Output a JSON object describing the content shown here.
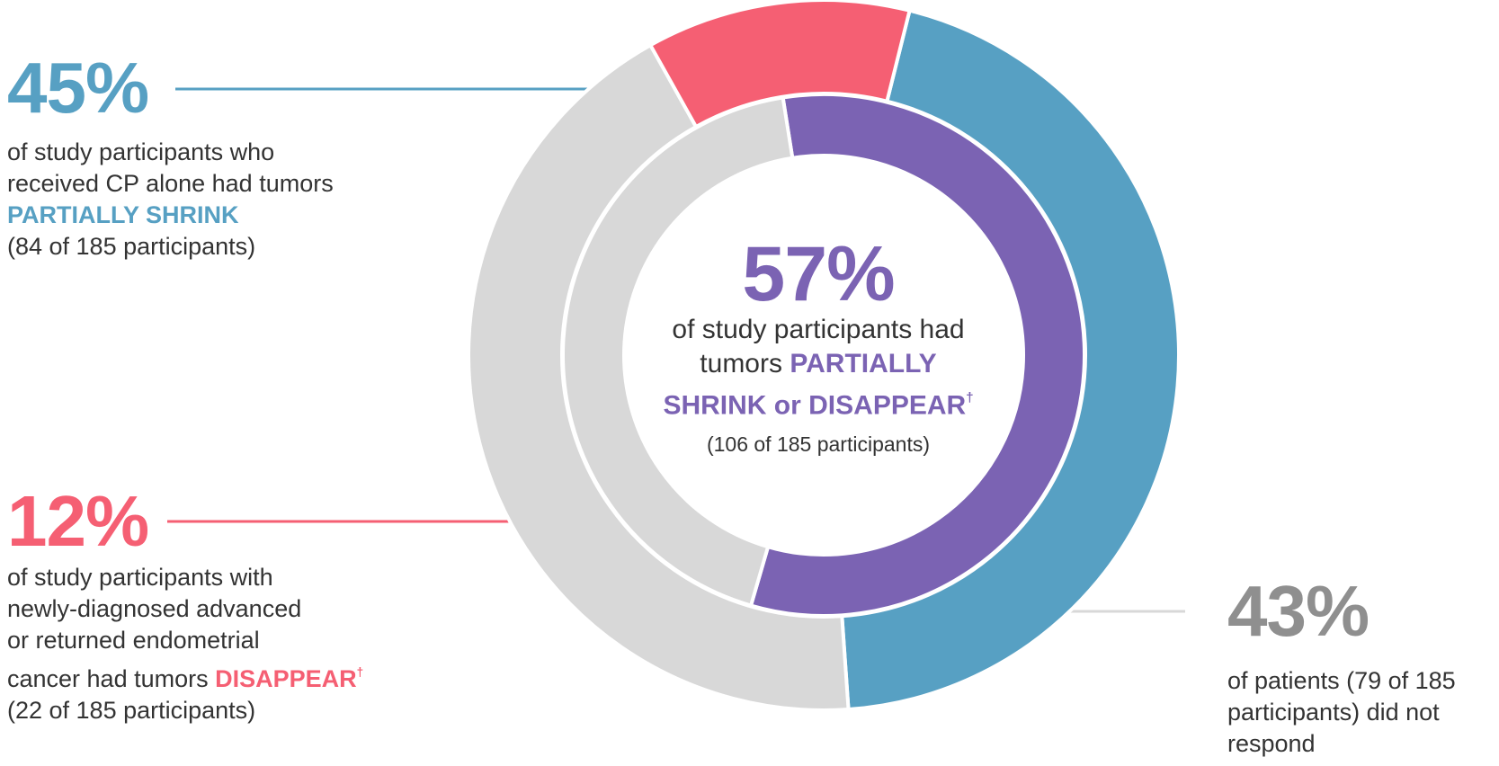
{
  "chart_data": {
    "type": "pie",
    "rings": [
      {
        "name": "outer",
        "slices": [
          {
            "label": "PARTIALLY SHRINK",
            "value": 45,
            "color": "#57a0c3"
          },
          {
            "label": "did not respond",
            "value": 43,
            "color": "#d8d8d8"
          },
          {
            "label": "DISAPPEAR",
            "value": 12,
            "color": "#f55f73"
          }
        ]
      },
      {
        "name": "inner",
        "slices": [
          {
            "label": "PARTIALLY SHRINK or DISAPPEAR",
            "value": 57,
            "color": "#7b63b3"
          },
          {
            "label": "did not respond",
            "value": 43,
            "color": "#d8d8d8"
          }
        ]
      }
    ]
  },
  "callouts": {
    "partial": {
      "pct": "45%",
      "line1": "of study participants who",
      "line2": "received CP alone had tumors",
      "highlight": "PARTIALLY SHRINK",
      "count": "(84 of 185 participants)"
    },
    "disappear": {
      "pct": "12%",
      "line1": "of study participants with",
      "line2": "newly-diagnosed advanced",
      "line3": "or returned endometrial",
      "line4_pre": "cancer had tumors ",
      "highlight": "DISAPPEAR",
      "dagger": "†",
      "count": "(22 of 185 participants)"
    },
    "noresponse": {
      "pct": "43%",
      "line1": "of patients (79 of 185",
      "line2": "participants) did not",
      "line3": "respond"
    },
    "center": {
      "pct": "57%",
      "line1": "of study participants had",
      "line2_pre": "tumors ",
      "line2_hl": "PARTIALLY",
      "line3_hl": "SHRINK or DISAPPEAR",
      "dagger": "†",
      "count": "(106 of 185 participants)"
    }
  },
  "colors": {
    "blue": "#57a0c3",
    "pink": "#f55f73",
    "purple": "#7b63b3",
    "gray": "#d8d8d8",
    "gray_text": "#8f8f8f"
  }
}
